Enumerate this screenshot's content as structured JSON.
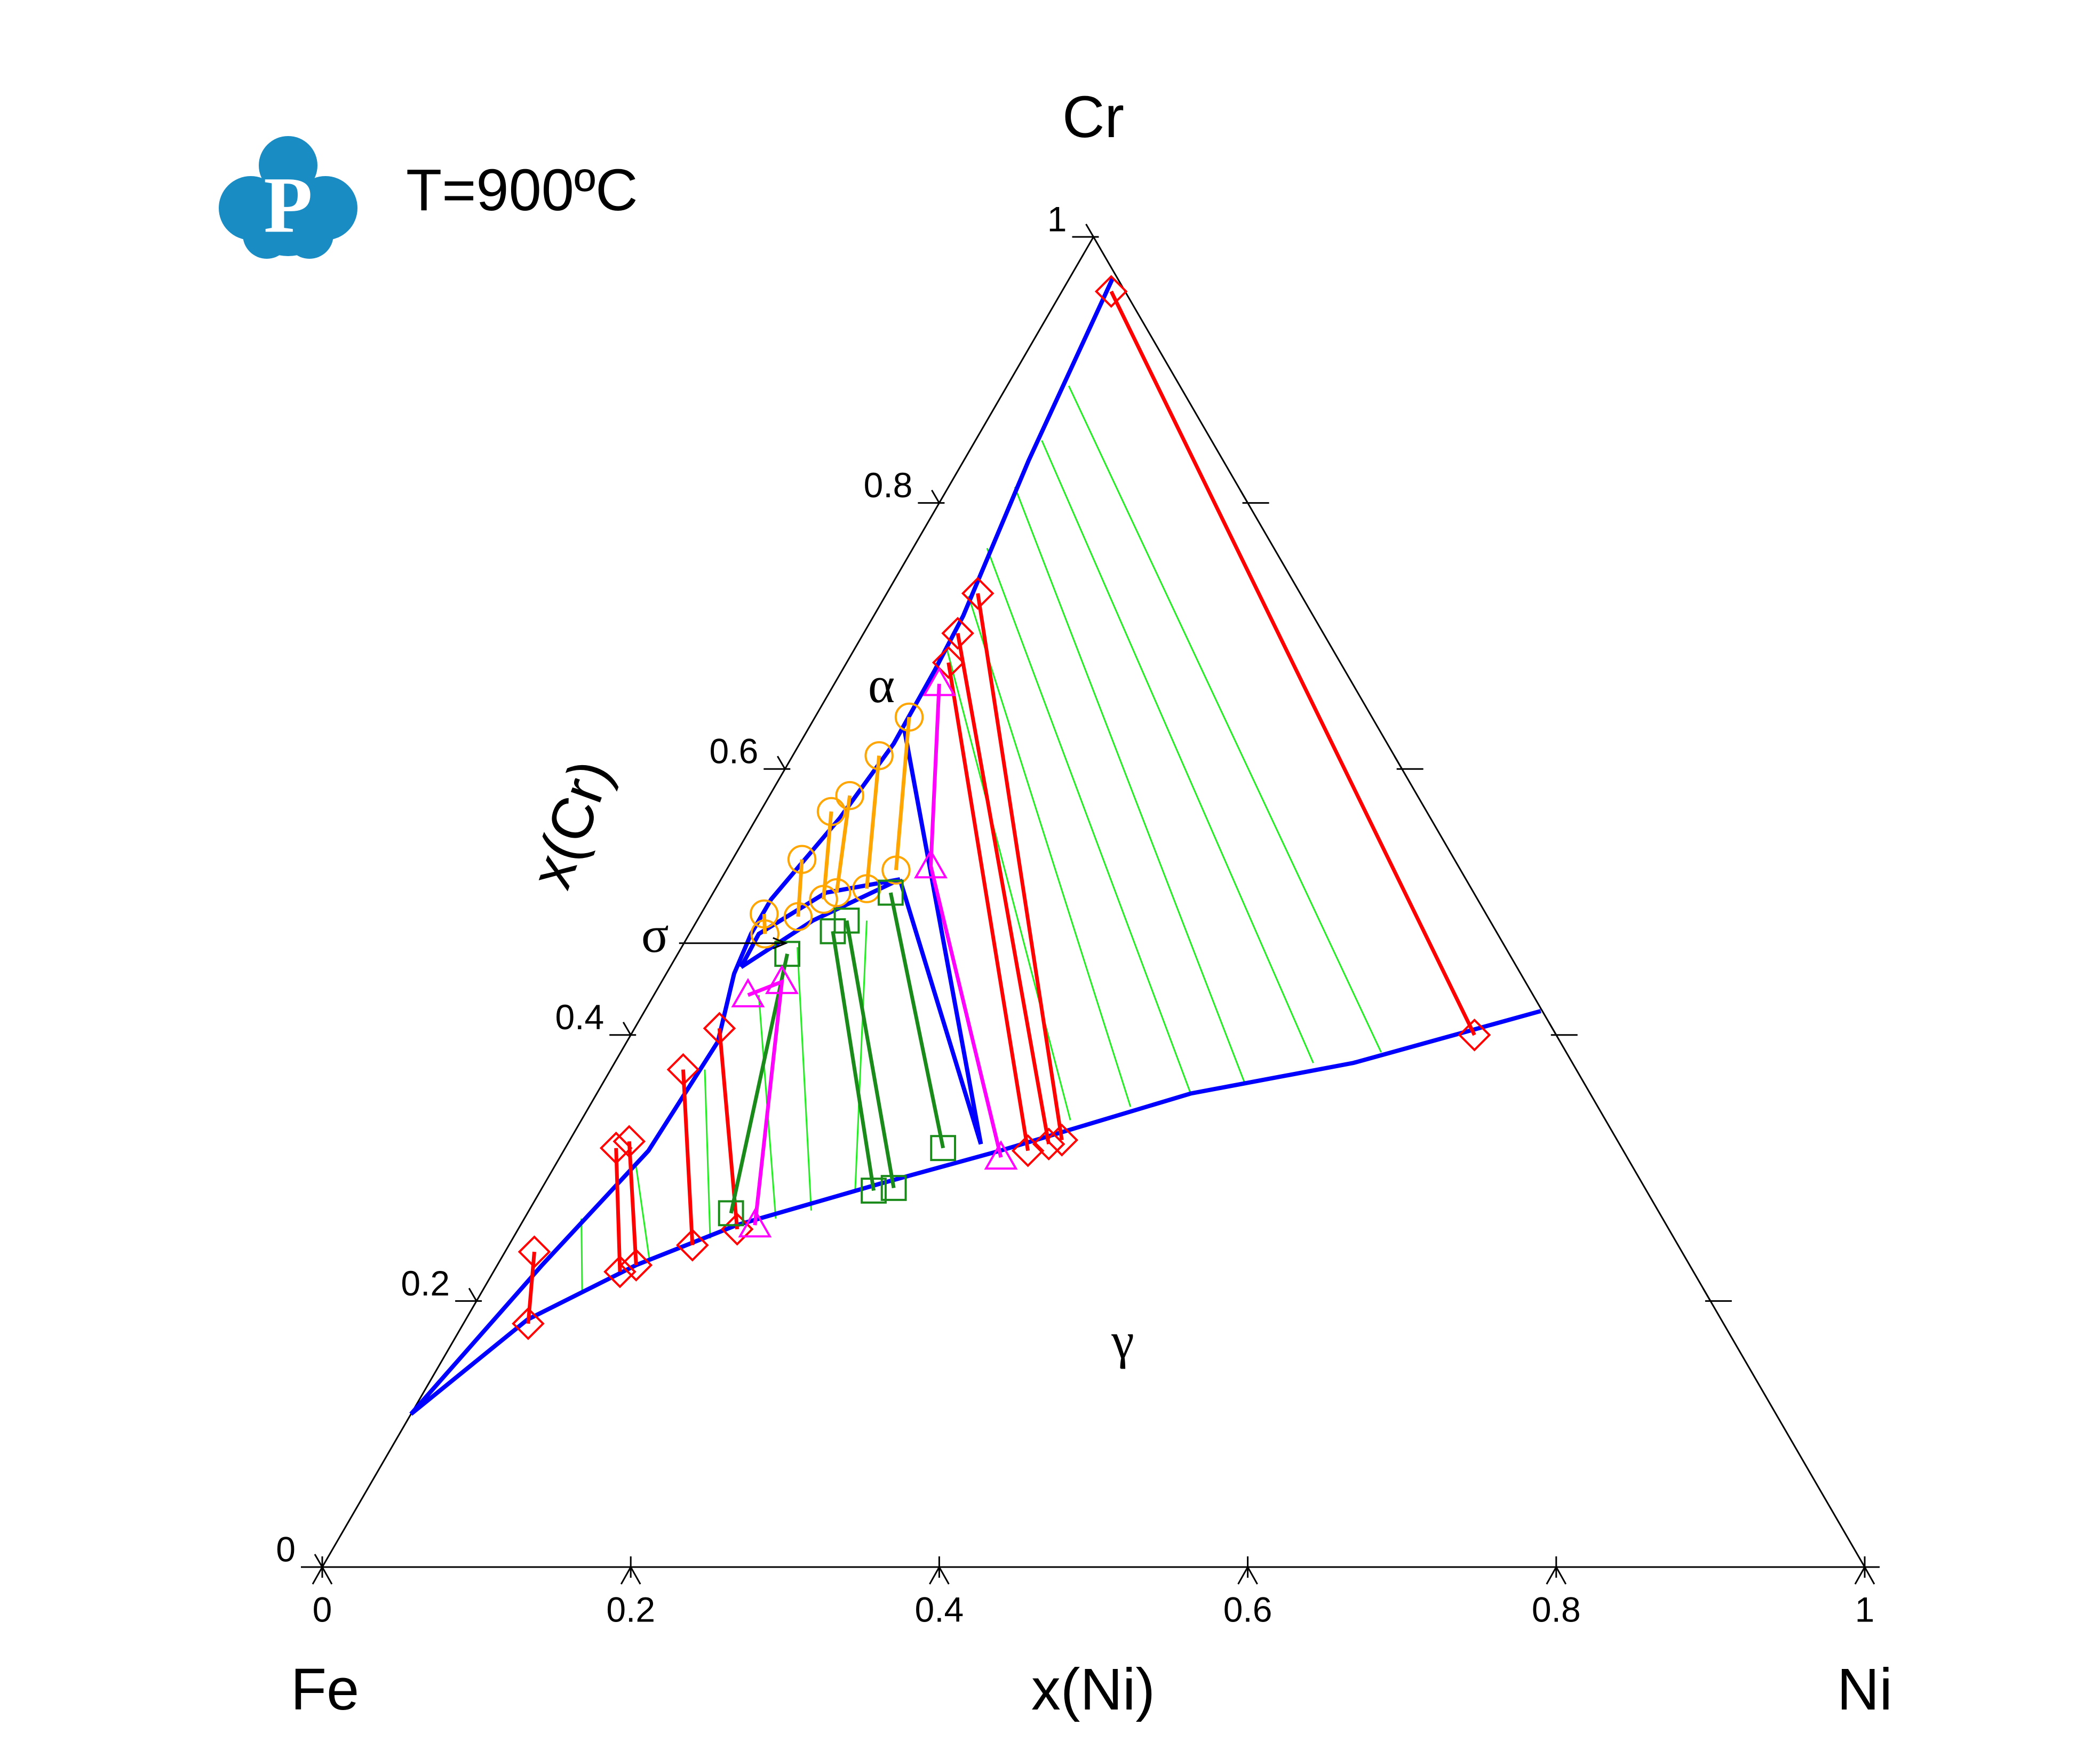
{
  "chart_data": {
    "type": "ternary",
    "title": "T=900ºC",
    "logo_text": "P",
    "corner_labels": {
      "left": "Fe",
      "right": "Ni",
      "top": "Cr"
    },
    "xlabel": "x(Ni)",
    "ylabel": "x(Cr)",
    "xlim": [
      0,
      1
    ],
    "ylim": [
      0,
      1
    ],
    "xticks": [
      0,
      0.2,
      0.4,
      0.6,
      0.8,
      1
    ],
    "yticks": [
      0,
      0.2,
      0.4,
      0.6,
      0.8,
      1
    ],
    "right_ticks": [
      0.2,
      0.4,
      0.6,
      0.8
    ],
    "phase_labels": [
      {
        "text": "α",
        "at": [
          0.033,
          0.659
        ]
      },
      {
        "text": "σ",
        "points_to": [
          0.066,
          0.469
        ]
      },
      {
        "text": "γ",
        "at": [
          0.436,
          0.166
        ]
      }
    ],
    "boundary_color": "#0000ff",
    "boundaries": [
      [
        [
          0.0,
          0.115
        ],
        [
          0.029,
          0.227
        ],
        [
          0.055,
          0.313
        ],
        [
          0.059,
          0.395
        ],
        [
          0.044,
          0.446
        ],
        [
          0.04,
          0.476
        ],
        [
          0.04,
          0.502
        ],
        [
          0.054,
          0.563
        ],
        [
          0.061,
          0.619
        ],
        [
          0.06,
          0.674
        ],
        [
          0.058,
          0.715
        ],
        [
          0.042,
          0.832
        ],
        [
          0.028,
          0.969
        ]
      ],
      [
        [
          0.046,
          0.451
        ],
        [
          0.075,
          0.486
        ],
        [
          0.116,
          0.517
        ],
        [
          0.073,
          0.507
        ],
        [
          0.045,
          0.476
        ],
        [
          0.046,
          0.451
        ]
      ],
      [
        [
          0.063,
          0.629
        ],
        [
          0.268,
          0.318
        ],
        [
          0.116,
          0.517
        ]
      ],
      [
        [
          0.0,
          0.115
        ],
        [
          0.04,
          0.186
        ],
        [
          0.09,
          0.227
        ],
        [
          0.14,
          0.257
        ],
        [
          0.217,
          0.288
        ],
        [
          0.283,
          0.313
        ],
        [
          0.385,
          0.356
        ],
        [
          0.479,
          0.379
        ],
        [
          0.581,
          0.418
        ]
      ]
    ],
    "tie_line_color": "#22ee22",
    "tie_lines": [
      [
        [
          0.04,
          0.888
        ],
        [
          0.493,
          0.387
        ]
      ],
      [
        [
          0.043,
          0.847
        ],
        [
          0.453,
          0.379
        ]
      ],
      [
        [
          0.043,
          0.812
        ],
        [
          0.416,
          0.364
        ]
      ],
      [
        [
          0.048,
          0.766
        ],
        [
          0.385,
          0.356
        ]
      ],
      [
        [
          0.054,
          0.73
        ],
        [
          0.351,
          0.346
        ]
      ],
      [
        [
          0.06,
          0.69
        ],
        [
          0.317,
          0.336
        ]
      ],
      [
        [
          0.037,
          0.262
        ],
        [
          0.065,
          0.207
        ]
      ],
      [
        [
          0.053,
          0.301
        ],
        [
          0.096,
          0.232
        ]
      ],
      [
        [
          0.061,
          0.374
        ],
        [
          0.128,
          0.247
        ]
      ],
      [
        [
          0.068,
          0.43
        ],
        [
          0.163,
          0.262
        ]
      ],
      [
        [
          0.075,
          0.466
        ],
        [
          0.183,
          0.268
        ]
      ],
      [
        [
          0.11,
          0.486
        ],
        [
          0.204,
          0.283
        ]
      ]
    ],
    "series": [
      {
        "color": "#ff0000",
        "marker": "diamond",
        "tie_lines": [
          [
            [
              0.032,
              0.959
            ],
            [
              0.547,
              0.4
            ]
          ],
          [
            [
              0.059,
              0.732
            ],
            [
              0.319,
              0.321
            ]
          ],
          [
            [
              0.061,
              0.702
            ],
            [
              0.312,
              0.318
            ]
          ],
          [
            [
              0.066,
              0.68
            ],
            [
              0.301,
              0.313
            ]
          ],
          [
            [
              0.047,
              0.374
            ],
            [
              0.119,
              0.242
            ]
          ],
          [
            [
              0.039,
              0.32
            ],
            [
              0.09,
              0.227
            ]
          ],
          [
            [
              0.033,
              0.315
            ],
            [
              0.082,
              0.222
            ]
          ],
          [
            [
              0.019,
              0.237
            ],
            [
              0.042,
              0.183
            ]
          ],
          [
            [
              0.055,
              0.405
            ],
            [
              0.142,
              0.254
            ]
          ]
        ]
      },
      {
        "color": "#ffa500",
        "marker": "circle",
        "tie_lines": [
          [
            [
              0.061,
              0.639
            ],
            [
              0.11,
              0.524
            ]
          ],
          [
            [
              0.056,
              0.61
            ],
            [
              0.098,
              0.51
            ]
          ],
          [
            [
              0.052,
              0.58
            ],
            [
              0.08,
              0.507
            ]
          ],
          [
            [
              0.046,
              0.568
            ],
            [
              0.074,
              0.502
            ]
          ],
          [
            [
              0.045,
              0.532
            ],
            [
              0.064,
              0.489
            ]
          ],
          [
            [
              0.041,
              0.491
            ],
            [
              0.049,
              0.476
            ]
          ]
        ]
      },
      {
        "color": "#1a8a1a",
        "marker": "square",
        "tie_lines": [
          [
            [
              0.115,
              0.507
            ],
            [
              0.245,
              0.315
            ]
          ],
          [
            [
              0.097,
              0.486
            ],
            [
              0.228,
              0.285
            ]
          ],
          [
            [
              0.092,
              0.478
            ],
            [
              0.216,
              0.283
            ]
          ],
          [
            [
              0.071,
              0.461
            ],
            [
              0.132,
              0.266
            ]
          ]
        ]
      },
      {
        "color": "#ff00ff",
        "marker": "triangle",
        "tie_lines": [
          [
            [
              0.068,
              0.664
            ],
            [
              0.131,
              0.527
            ],
            [
              0.286,
              0.308
            ]
          ],
          [
            [
              0.061,
              0.43
            ],
            [
              0.078,
              0.44
            ],
            [
              0.152,
              0.257
            ]
          ]
        ]
      }
    ]
  }
}
